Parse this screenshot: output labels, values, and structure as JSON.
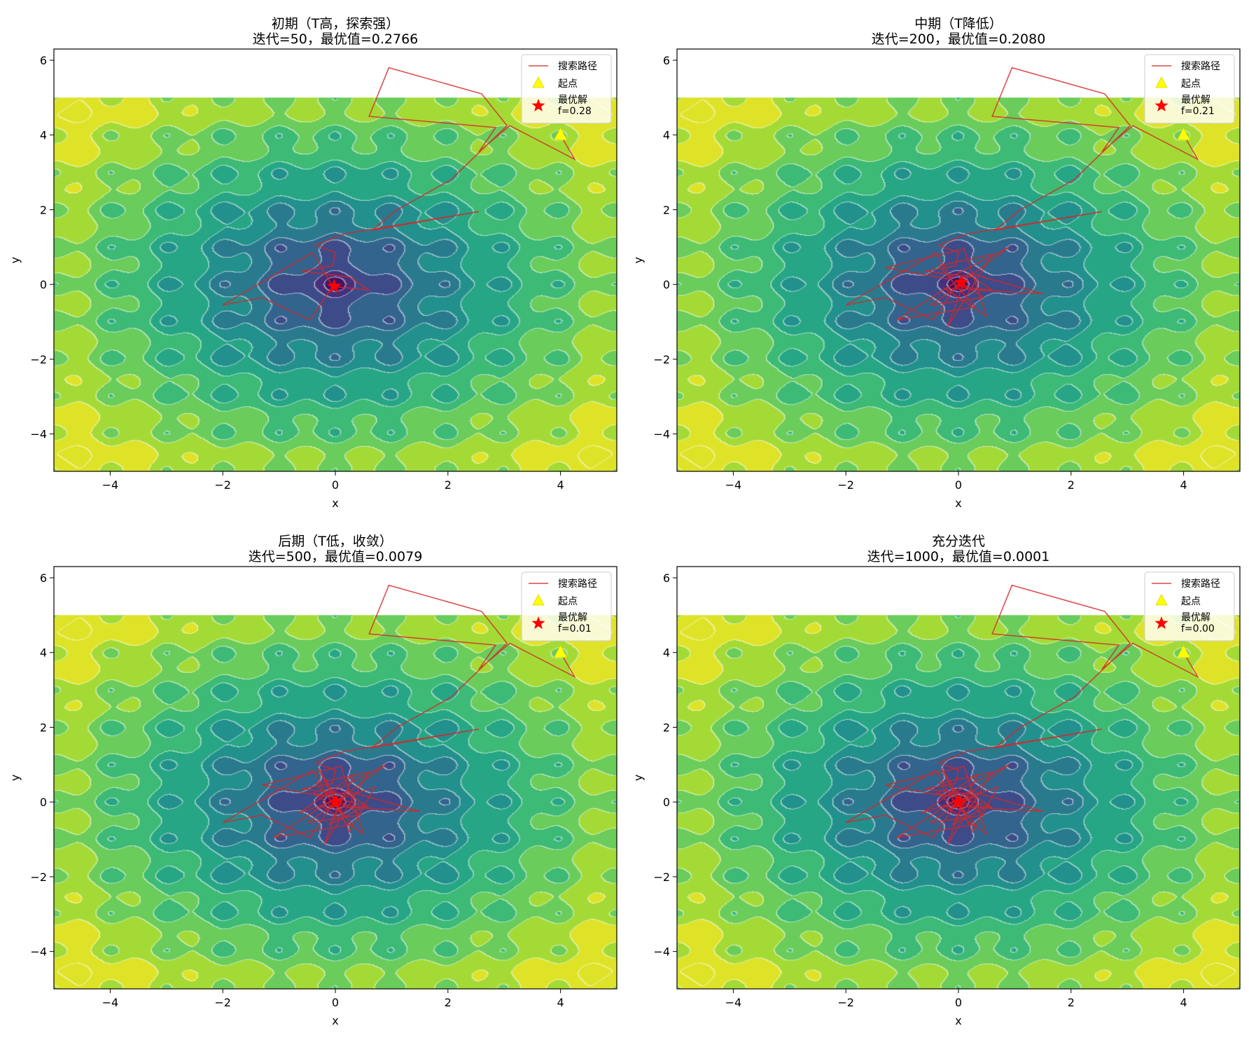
{
  "chart_data": [
    {
      "type": "heatmap",
      "title_line1": "初期（T高，探索强）",
      "title_line2": "迭代=50，最优值=0.2766",
      "xlabel": "x",
      "ylabel": "y",
      "xlim": [
        -5,
        5
      ],
      "ylim": [
        -5,
        6.3
      ],
      "xticks": [
        -4,
        -2,
        0,
        2,
        4
      ],
      "yticks": [
        -4,
        -2,
        0,
        2,
        4,
        6
      ],
      "field_extent": {
        "x": [
          -5,
          5
        ],
        "y": [
          -5,
          5
        ]
      },
      "colormap": "viridis",
      "legend": {
        "placement": "top-right",
        "items": [
          "搜索路径",
          "起点",
          "最优解\nf=0.28"
        ]
      },
      "start": {
        "x": 4,
        "y": 4
      },
      "best": {
        "x": -0.02,
        "y": -0.05,
        "f": 0.28
      },
      "path_color": "#d62728",
      "path": [
        [
          4,
          4
        ],
        [
          4.25,
          3.35
        ],
        [
          3.1,
          4.25
        ],
        [
          2.55,
          3.55
        ],
        [
          2.85,
          4.2
        ],
        [
          0.6,
          4.5
        ],
        [
          0.95,
          5.8
        ],
        [
          2.6,
          5.1
        ],
        [
          3.05,
          4.25
        ],
        [
          2.05,
          2.8
        ],
        [
          1.1,
          2.0
        ],
        [
          0.65,
          1.45
        ],
        [
          2.55,
          1.95
        ],
        [
          0.15,
          1.35
        ],
        [
          -0.35,
          1.05
        ],
        [
          0.0,
          0.85
        ],
        [
          -0.05,
          0.5
        ],
        [
          -0.6,
          0.35
        ],
        [
          0.25,
          0.2
        ],
        [
          0.6,
          -0.15
        ],
        [
          -0.05,
          -0.05
        ],
        [
          -0.45,
          -0.95
        ],
        [
          -1.3,
          -0.35
        ],
        [
          -2.0,
          -0.55
        ],
        [
          -0.4,
          0.85
        ],
        [
          -0.05,
          -0.05
        ]
      ]
    },
    {
      "type": "heatmap",
      "title_line1": "中期（T降低）",
      "title_line2": "迭代=200，最优值=0.2080",
      "xlabel": "x",
      "ylabel": "y",
      "xlim": [
        -5,
        5
      ],
      "ylim": [
        -5,
        6.3
      ],
      "xticks": [
        -4,
        -2,
        0,
        2,
        4
      ],
      "yticks": [
        -4,
        -2,
        0,
        2,
        4,
        6
      ],
      "field_extent": {
        "x": [
          -5,
          5
        ],
        "y": [
          -5,
          5
        ]
      },
      "colormap": "viridis",
      "legend": {
        "placement": "top-right",
        "items": [
          "搜索路径",
          "起点",
          "最优解\nf=0.21"
        ]
      },
      "start": {
        "x": 4,
        "y": 4
      },
      "best": {
        "x": 0.05,
        "y": 0.05,
        "f": 0.21
      },
      "path_color": "#d62728",
      "path": [
        [
          4,
          4
        ],
        [
          4.25,
          3.35
        ],
        [
          3.1,
          4.25
        ],
        [
          2.55,
          3.55
        ],
        [
          2.85,
          4.2
        ],
        [
          0.6,
          4.5
        ],
        [
          0.95,
          5.8
        ],
        [
          2.6,
          5.1
        ],
        [
          3.05,
          4.25
        ],
        [
          2.05,
          2.8
        ],
        [
          1.1,
          2.0
        ],
        [
          0.65,
          1.45
        ],
        [
          2.55,
          1.95
        ],
        [
          0.15,
          1.35
        ],
        [
          -0.35,
          1.05
        ],
        [
          0.0,
          0.85
        ],
        [
          -0.05,
          0.5
        ],
        [
          -0.6,
          0.35
        ],
        [
          0.25,
          0.2
        ],
        [
          0.6,
          -0.15
        ],
        [
          -0.05,
          -0.05
        ],
        [
          -0.45,
          -0.95
        ],
        [
          -1.3,
          -0.35
        ],
        [
          -2.0,
          -0.55
        ],
        [
          -0.4,
          0.85
        ],
        [
          -0.05,
          -0.05
        ],
        [
          0.9,
          1.0
        ],
        [
          -0.2,
          0.15
        ],
        [
          -1.3,
          0.45
        ],
        [
          0.1,
          0.95
        ],
        [
          0.5,
          -0.85
        ],
        [
          -0.25,
          -0.1
        ],
        [
          1.5,
          -0.25
        ],
        [
          0.2,
          0.3
        ],
        [
          -1.1,
          -0.95
        ],
        [
          0.3,
          -0.6
        ],
        [
          -0.35,
          0.5
        ],
        [
          0.6,
          0.8
        ],
        [
          -0.2,
          -1.15
        ],
        [
          0.1,
          0.05
        ],
        [
          -0.5,
          -0.55
        ],
        [
          0.45,
          -0.35
        ],
        [
          0.05,
          0.05
        ]
      ]
    },
    {
      "type": "heatmap",
      "title_line1": "后期（T低，收敛）",
      "title_line2": "迭代=500，最优值=0.0079",
      "xlabel": "x",
      "ylabel": "y",
      "xlim": [
        -5,
        5
      ],
      "ylim": [
        -5,
        6.3
      ],
      "xticks": [
        -4,
        -2,
        0,
        2,
        4
      ],
      "yticks": [
        -4,
        -2,
        0,
        2,
        4,
        6
      ],
      "field_extent": {
        "x": [
          -5,
          5
        ],
        "y": [
          -5,
          5
        ]
      },
      "colormap": "viridis",
      "legend": {
        "placement": "top-right",
        "items": [
          "搜索路径",
          "起点",
          "最优解\nf=0.01"
        ]
      },
      "start": {
        "x": 4,
        "y": 4
      },
      "best": {
        "x": 0.0,
        "y": 0.0,
        "f": 0.01
      },
      "path_color": "#d62728",
      "path": [
        [
          4,
          4
        ],
        [
          4.25,
          3.35
        ],
        [
          3.1,
          4.25
        ],
        [
          2.55,
          3.55
        ],
        [
          2.85,
          4.2
        ],
        [
          0.6,
          4.5
        ],
        [
          0.95,
          5.8
        ],
        [
          2.6,
          5.1
        ],
        [
          3.05,
          4.25
        ],
        [
          2.05,
          2.8
        ],
        [
          1.1,
          2.0
        ],
        [
          0.65,
          1.45
        ],
        [
          2.55,
          1.95
        ],
        [
          0.15,
          1.35
        ],
        [
          -0.35,
          1.05
        ],
        [
          0.0,
          0.85
        ],
        [
          -0.05,
          0.5
        ],
        [
          -0.6,
          0.35
        ],
        [
          0.25,
          0.2
        ],
        [
          0.6,
          -0.15
        ],
        [
          -0.05,
          -0.05
        ],
        [
          -0.45,
          -0.95
        ],
        [
          -1.3,
          -0.35
        ],
        [
          -2.0,
          -0.55
        ],
        [
          -0.4,
          0.85
        ],
        [
          -0.05,
          -0.05
        ],
        [
          0.9,
          1.0
        ],
        [
          -0.2,
          0.15
        ],
        [
          -1.3,
          0.45
        ],
        [
          0.1,
          0.95
        ],
        [
          0.5,
          -0.85
        ],
        [
          -0.25,
          -0.1
        ],
        [
          1.5,
          -0.25
        ],
        [
          0.2,
          0.3
        ],
        [
          -1.1,
          -0.95
        ],
        [
          0.3,
          -0.6
        ],
        [
          -0.35,
          0.5
        ],
        [
          0.6,
          0.8
        ],
        [
          -0.2,
          -1.15
        ],
        [
          0.1,
          0.05
        ],
        [
          -0.5,
          -0.55
        ],
        [
          0.45,
          -0.35
        ],
        [
          0.05,
          0.05
        ],
        [
          -0.3,
          0.9
        ],
        [
          0.25,
          -0.8
        ],
        [
          0.7,
          0.4
        ],
        [
          -0.65,
          -0.3
        ],
        [
          0.35,
          0.75
        ],
        [
          -0.1,
          -0.6
        ],
        [
          0.55,
          -0.1
        ],
        [
          -0.4,
          0.25
        ],
        [
          0.15,
          -0.35
        ],
        [
          -0.2,
          0.6
        ],
        [
          0.0,
          0.0
        ]
      ]
    },
    {
      "type": "heatmap",
      "title_line1": "充分迭代",
      "title_line2": "迭代=1000，最优值=0.0001",
      "xlabel": "x",
      "ylabel": "y",
      "xlim": [
        -5,
        5
      ],
      "ylim": [
        -5,
        6.3
      ],
      "xticks": [
        -4,
        -2,
        0,
        2,
        4
      ],
      "yticks": [
        -4,
        -2,
        0,
        2,
        4,
        6
      ],
      "field_extent": {
        "x": [
          -5,
          5
        ],
        "y": [
          -5,
          5
        ]
      },
      "colormap": "viridis",
      "legend": {
        "placement": "top-right",
        "items": [
          "搜索路径",
          "起点",
          "最优解\nf=0.00"
        ]
      },
      "start": {
        "x": 4,
        "y": 4
      },
      "best": {
        "x": 0.0,
        "y": 0.0,
        "f": 0.0
      },
      "path_color": "#d62728",
      "path": [
        [
          4,
          4
        ],
        [
          4.25,
          3.35
        ],
        [
          3.1,
          4.25
        ],
        [
          2.55,
          3.55
        ],
        [
          2.85,
          4.2
        ],
        [
          0.6,
          4.5
        ],
        [
          0.95,
          5.8
        ],
        [
          2.6,
          5.1
        ],
        [
          3.05,
          4.25
        ],
        [
          2.05,
          2.8
        ],
        [
          1.1,
          2.0
        ],
        [
          0.65,
          1.45
        ],
        [
          2.55,
          1.95
        ],
        [
          0.15,
          1.35
        ],
        [
          -0.35,
          1.05
        ],
        [
          0.0,
          0.85
        ],
        [
          -0.05,
          0.5
        ],
        [
          -0.6,
          0.35
        ],
        [
          0.25,
          0.2
        ],
        [
          0.6,
          -0.15
        ],
        [
          -0.05,
          -0.05
        ],
        [
          -0.45,
          -0.95
        ],
        [
          -1.3,
          -0.35
        ],
        [
          -2.0,
          -0.55
        ],
        [
          -0.4,
          0.85
        ],
        [
          -0.05,
          -0.05
        ],
        [
          0.9,
          1.0
        ],
        [
          -0.2,
          0.15
        ],
        [
          -1.3,
          0.45
        ],
        [
          0.1,
          0.95
        ],
        [
          0.5,
          -0.85
        ],
        [
          -0.25,
          -0.1
        ],
        [
          1.5,
          -0.25
        ],
        [
          0.2,
          0.3
        ],
        [
          -1.1,
          -0.95
        ],
        [
          0.3,
          -0.6
        ],
        [
          -0.35,
          0.5
        ],
        [
          0.6,
          0.8
        ],
        [
          -0.2,
          -1.15
        ],
        [
          0.1,
          0.05
        ],
        [
          -0.5,
          -0.55
        ],
        [
          0.45,
          -0.35
        ],
        [
          0.05,
          0.05
        ],
        [
          -0.3,
          0.9
        ],
        [
          0.25,
          -0.8
        ],
        [
          0.7,
          0.4
        ],
        [
          -0.65,
          -0.3
        ],
        [
          0.35,
          0.75
        ],
        [
          -0.1,
          -0.6
        ],
        [
          0.55,
          -0.1
        ],
        [
          -0.4,
          0.25
        ],
        [
          0.15,
          -0.35
        ],
        [
          -0.2,
          0.6
        ],
        [
          0.0,
          0.0
        ],
        [
          0.3,
          0.15
        ],
        [
          -0.15,
          -0.2
        ],
        [
          0.1,
          0.25
        ],
        [
          0.0,
          0.0
        ]
      ]
    }
  ]
}
